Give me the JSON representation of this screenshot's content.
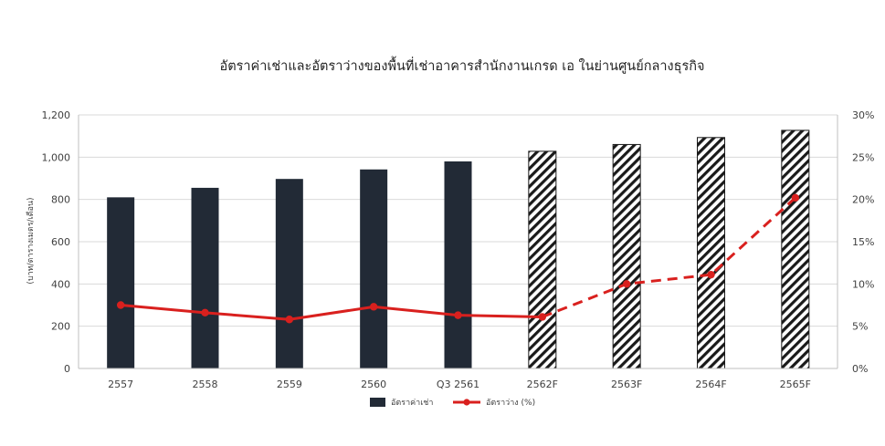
{
  "chart_data": {
    "type": "bar+line",
    "title": "อัตราค่าเช่าและอัตราว่างของพื้นที่เช่าอาคารสำนักงานเกรด เอ ในย่านศูนย์กลางธุรกิจ",
    "xlabel": "",
    "ylabel": "(บาท/ตารางเมตร/เดือน)",
    "categories": [
      "2557",
      "2558",
      "2559",
      "2560",
      "Q3 2561",
      "2562F",
      "2563F",
      "2564F",
      "2565F"
    ],
    "forecast_from_index": 5,
    "y_left": {
      "lim": [
        0,
        1200
      ],
      "ticks": [
        0,
        200,
        400,
        600,
        800,
        "1,000",
        "1,200"
      ]
    },
    "y_right": {
      "lim": [
        0,
        30
      ],
      "ticks": [
        "0%",
        "5%",
        "10%",
        "15%",
        "20%",
        "25%",
        "30%"
      ]
    },
    "grid": true,
    "legend_position": "bottom-center",
    "series": [
      {
        "name": "อัตราค่าเช่า",
        "type": "bar",
        "axis": "left",
        "values": [
          810,
          855,
          897,
          942,
          980,
          1028,
          1060,
          1093,
          1127
        ]
      },
      {
        "name": "อัตราว่าง (%)",
        "type": "line",
        "axis": "right",
        "values": [
          7.5,
          6.6,
          5.8,
          7.3,
          6.3,
          6.1,
          10.0,
          11.1,
          20.2
        ]
      }
    ],
    "colors": {
      "bar": "#222a36",
      "line": "#d9201e",
      "grid": "#d9d9d9",
      "text": "#404040",
      "title": "#222222"
    }
  }
}
